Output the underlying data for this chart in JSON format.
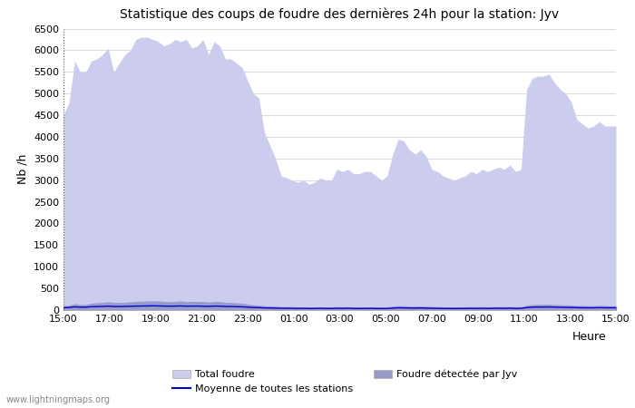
{
  "title": "Statistique des coups de foudre des dernières 24h pour la station: Jyv",
  "ylabel": "Nb /h",
  "xlabel": "Heure",
  "ylim": [
    0,
    6500
  ],
  "yticks": [
    0,
    500,
    1000,
    1500,
    2000,
    2500,
    3000,
    3500,
    4000,
    4500,
    5000,
    5500,
    6000,
    6500
  ],
  "xtick_labels": [
    "15:00",
    "17:00",
    "19:00",
    "21:00",
    "23:00",
    "01:00",
    "03:00",
    "05:00",
    "07:00",
    "09:00",
    "11:00",
    "13:00",
    "15:00"
  ],
  "color_total": "#ccccee",
  "color_jyv": "#9999cc",
  "color_moyenne": "#0000cc",
  "watermark": "www.lightningmaps.org",
  "legend_total": "Total foudre",
  "legend_jyv": "Foudre détectée par Jyv",
  "legend_moyenne": "Moyenne de toutes les stations",
  "total_foudre": [
    4500,
    4800,
    5750,
    5500,
    5500,
    5750,
    5800,
    5900,
    6050,
    5500,
    5700,
    5900,
    6000,
    6250,
    6300,
    6300,
    6250,
    6200,
    6100,
    6150,
    6250,
    6200,
    6250,
    6050,
    6100,
    6250,
    5900,
    6200,
    6100,
    5800,
    5800,
    5700,
    5600,
    5300,
    5000,
    4900,
    4100,
    3800,
    3500,
    3100,
    3050,
    3000,
    2950,
    3000,
    2900,
    2950,
    3050,
    3000,
    3000,
    3250,
    3200,
    3250,
    3150,
    3150,
    3200,
    3200,
    3100,
    3000,
    3100,
    3600,
    3950,
    3900,
    3700,
    3600,
    3700,
    3550,
    3250,
    3200,
    3100,
    3050,
    3000,
    3050,
    3100,
    3200,
    3150,
    3250,
    3200,
    3250,
    3300,
    3250,
    3350,
    3200,
    3250,
    5100,
    5350,
    5400,
    5400,
    5450,
    5250,
    5100,
    5000,
    4800,
    4400,
    4300,
    4200,
    4250,
    4350,
    4250,
    4250,
    4250
  ],
  "jyv_foudre": [
    100,
    110,
    150,
    130,
    130,
    160,
    170,
    180,
    190,
    180,
    175,
    180,
    190,
    200,
    205,
    210,
    215,
    210,
    200,
    195,
    200,
    210,
    195,
    200,
    200,
    195,
    185,
    200,
    195,
    180,
    175,
    165,
    160,
    140,
    120,
    110,
    100,
    95,
    90,
    80,
    80,
    78,
    72,
    75,
    68,
    72,
    75,
    72,
    70,
    78,
    75,
    78,
    72,
    70,
    72,
    73,
    70,
    68,
    70,
    90,
    100,
    98,
    92,
    90,
    93,
    88,
    82,
    80,
    75,
    72,
    70,
    72,
    75,
    78,
    75,
    78,
    75,
    78,
    80,
    78,
    82,
    75,
    78,
    110,
    130,
    135,
    135,
    138,
    130,
    125,
    120,
    115,
    108,
    105,
    102,
    102,
    108,
    105,
    102,
    102
  ],
  "moyenne": [
    55,
    60,
    75,
    68,
    68,
    78,
    80,
    85,
    90,
    83,
    82,
    85,
    88,
    92,
    94,
    96,
    98,
    96,
    92,
    90,
    92,
    96,
    90,
    92,
    92,
    90,
    86,
    92,
    90,
    84,
    82,
    78,
    75,
    68,
    60,
    58,
    50,
    48,
    45,
    42,
    42,
    40,
    38,
    40,
    36,
    38,
    40,
    38,
    36,
    42,
    40,
    42,
    38,
    36,
    38,
    40,
    37,
    35,
    37,
    46,
    52,
    50,
    48,
    46,
    48,
    45,
    42,
    40,
    38,
    37,
    36,
    37,
    38,
    40,
    38,
    40,
    38,
    40,
    42,
    40,
    43,
    38,
    40,
    58,
    68,
    70,
    70,
    72,
    68,
    65,
    62,
    60,
    56,
    54,
    53,
    53,
    56,
    54,
    53,
    53
  ],
  "n_points": 100,
  "background_color": "#ffffff",
  "grid_color": "#cccccc"
}
